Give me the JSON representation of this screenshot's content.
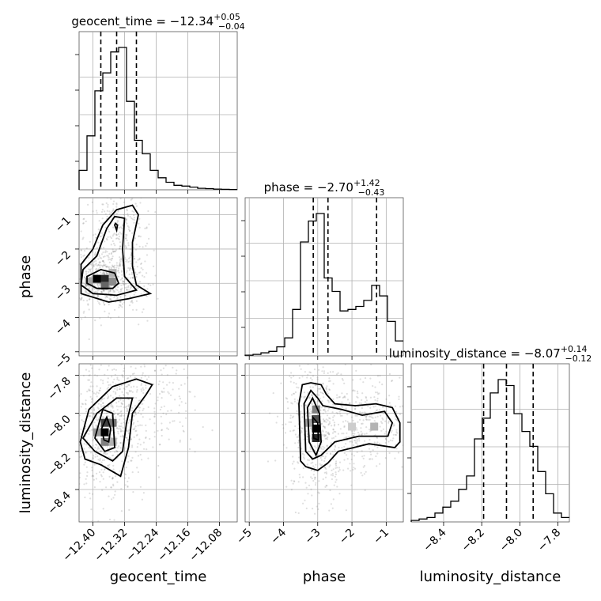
{
  "chart_data": {
    "type": "corner",
    "parameters": [
      "geocent_time",
      "phase",
      "luminosity_distance"
    ],
    "titles": [
      {
        "param": "geocent_time",
        "prefix": "geocent_time = ",
        "median": "−12.34",
        "plus": "+0.05",
        "minus": "−0.04"
      },
      {
        "param": "phase",
        "prefix": "phase = ",
        "median": "−2.70",
        "plus": "+1.42",
        "minus": "−0.43"
      },
      {
        "param": "luminosity_distance",
        "prefix": "luminosity_distance = ",
        "median": "−8.07",
        "plus": "+0.14",
        "minus": "−0.12"
      }
    ],
    "ranges": {
      "geocent_time": [
        -12.435,
        -12.035
      ],
      "phase": [
        -5.12,
        -0.5
      ],
      "luminosity_distance": [
        -8.57,
        -7.74
      ]
    },
    "ticks": {
      "geocent_time": {
        "values": [
          -12.4,
          -12.32,
          -12.24,
          -12.16,
          -12.08
        ],
        "labels": [
          "−12.40",
          "−12.32",
          "−12.24",
          "−12.16",
          "−12.08"
        ]
      },
      "phase": {
        "values": [
          -5,
          -4,
          -3,
          -2,
          -1
        ],
        "labels": [
          "−5",
          "−4",
          "−3",
          "−2",
          "−1"
        ]
      },
      "luminosity_distance": {
        "values": [
          -8.4,
          -8.2,
          -8.0,
          -7.8
        ],
        "labels": [
          "−8.4",
          "−8.2",
          "−8.0",
          "−7.8"
        ]
      }
    },
    "quantiles": {
      "geocent_time": [
        -12.38,
        -12.34,
        -12.29
      ],
      "phase": [
        -3.13,
        -2.7,
        -1.28
      ],
      "luminosity_distance": [
        -8.19,
        -8.07,
        -7.93
      ]
    },
    "histograms": {
      "geocent_time": {
        "edges": [
          -12.435,
          -12.415,
          -12.395,
          -12.375,
          -12.355,
          -12.335,
          -12.315,
          -12.295,
          -12.275,
          -12.255,
          -12.235,
          -12.215,
          -12.195,
          -12.175,
          -12.155,
          -12.135,
          -12.115,
          -12.095,
          -12.075,
          -12.055,
          -12.035
        ],
        "counts": [
          0.13,
          0.36,
          0.66,
          0.78,
          0.92,
          0.95,
          0.59,
          0.33,
          0.24,
          0.13,
          0.08,
          0.05,
          0.03,
          0.025,
          0.018,
          0.01,
          0.008,
          0.005,
          0.003,
          0.002
        ]
      },
      "phase": {
        "edges": [
          -5.12,
          -4.889,
          -4.658,
          -4.427,
          -4.196,
          -3.965,
          -3.734,
          -3.503,
          -3.272,
          -3.041,
          -2.81,
          -2.579,
          -2.348,
          -2.117,
          -1.886,
          -1.655,
          -1.424,
          -1.193,
          -0.962,
          -0.731,
          -0.5
        ],
        "counts": [
          0.005,
          0.01,
          0.02,
          0.03,
          0.06,
          0.12,
          0.31,
          0.76,
          0.9,
          0.95,
          0.52,
          0.43,
          0.3,
          0.31,
          0.33,
          0.37,
          0.47,
          0.4,
          0.23,
          0.1
        ]
      },
      "luminosity_distance": {
        "edges": [
          -8.57,
          -8.5285,
          -8.487,
          -8.4455,
          -8.404,
          -8.3625,
          -8.321,
          -8.2795,
          -8.238,
          -8.1965,
          -8.155,
          -8.1135,
          -8.072,
          -8.0305,
          -7.989,
          -7.9475,
          -7.906,
          -7.8645,
          -7.823,
          -7.7815,
          -7.74
        ],
        "counts": [
          0.01,
          0.02,
          0.03,
          0.06,
          0.1,
          0.14,
          0.22,
          0.31,
          0.56,
          0.7,
          0.87,
          0.96,
          0.92,
          0.73,
          0.61,
          0.51,
          0.34,
          0.19,
          0.06,
          0.03
        ]
      }
    },
    "pairs": [
      {
        "x": "geocent_time",
        "y": "phase",
        "blobs": [
          {
            "cx": -12.37,
            "cy": -2.95,
            "sx": 0.03,
            "sy": 0.28,
            "w": 0.62
          },
          {
            "cx": -12.34,
            "cy": -1.6,
            "sx": 0.025,
            "sy": 0.55,
            "w": 0.38
          }
        ],
        "contour_levels": [
          [
            [
              -12.43,
              -2.45
            ],
            [
              -12.4,
              -2.0
            ],
            [
              -12.375,
              -1.3
            ],
            [
              -12.34,
              -0.85
            ],
            [
              -12.3,
              -0.72
            ],
            [
              -12.285,
              -1.0
            ],
            [
              -12.3,
              -1.8
            ],
            [
              -12.3,
              -2.5
            ],
            [
              -12.29,
              -3.05
            ],
            [
              -12.255,
              -3.3
            ],
            [
              -12.31,
              -3.45
            ],
            [
              -12.36,
              -3.55
            ],
            [
              -12.43,
              -3.3
            ]
          ],
          [
            [
              -12.425,
              -2.6
            ],
            [
              -12.39,
              -2.2
            ],
            [
              -12.365,
              -1.4
            ],
            [
              -12.345,
              -1.05
            ],
            [
              -12.32,
              -1.1
            ],
            [
              -12.325,
              -2.0
            ],
            [
              -12.32,
              -2.8
            ],
            [
              -12.29,
              -3.2
            ],
            [
              -12.34,
              -3.35
            ],
            [
              -12.4,
              -3.3
            ],
            [
              -12.43,
              -3.05
            ]
          ],
          [
            [
              -12.415,
              -2.8
            ],
            [
              -12.38,
              -2.6
            ],
            [
              -12.345,
              -2.7
            ],
            [
              -12.335,
              -3.0
            ],
            [
              -12.35,
              -3.15
            ],
            [
              -12.39,
              -3.15
            ],
            [
              -12.415,
              -3.0
            ]
          ],
          [
            [
              -12.343,
              -1.25
            ],
            [
              -12.338,
              -1.3
            ],
            [
              -12.34,
              -1.45
            ],
            [
              -12.345,
              -1.3
            ]
          ]
        ],
        "density_cells": [
          {
            "x": -12.39,
            "y": -2.87,
            "v": 1.0
          },
          {
            "x": -12.37,
            "y": -2.87,
            "v": 0.85
          },
          {
            "x": -12.37,
            "y": -3.07,
            "v": 0.6
          },
          {
            "x": -12.35,
            "y": -2.95,
            "v": 0.45
          },
          {
            "x": -12.41,
            "y": -2.95,
            "v": 0.35
          },
          {
            "x": -12.35,
            "y": -2.7,
            "v": 0.3
          }
        ]
      },
      {
        "x": "geocent_time",
        "y": "luminosity_distance",
        "blobs": [
          {
            "cx": -12.365,
            "cy": -8.1,
            "sx": 0.03,
            "sy": 0.11,
            "w": 0.7
          },
          {
            "cx": -12.29,
            "cy": -7.92,
            "sx": 0.05,
            "sy": 0.08,
            "w": 0.3
          }
        ],
        "contour_levels": [
          [
            [
              -12.432,
              -8.15
            ],
            [
              -12.41,
              -7.98
            ],
            [
              -12.35,
              -7.86
            ],
            [
              -12.29,
              -7.82
            ],
            [
              -12.25,
              -7.85
            ],
            [
              -12.265,
              -7.9
            ],
            [
              -12.3,
              -8.0
            ],
            [
              -12.31,
              -8.18
            ],
            [
              -12.33,
              -8.33
            ],
            [
              -12.38,
              -8.27
            ],
            [
              -12.42,
              -8.24
            ]
          ],
          [
            [
              -12.425,
              -8.13
            ],
            [
              -12.39,
              -8.0
            ],
            [
              -12.34,
              -7.92
            ],
            [
              -12.3,
              -7.92
            ],
            [
              -12.315,
              -8.05
            ],
            [
              -12.325,
              -8.2
            ],
            [
              -12.35,
              -8.25
            ],
            [
              -12.395,
              -8.2
            ]
          ],
          [
            [
              -12.395,
              -8.13
            ],
            [
              -12.375,
              -7.98
            ],
            [
              -12.35,
              -8.0
            ],
            [
              -12.345,
              -8.18
            ],
            [
              -12.37,
              -8.2
            ]
          ],
          [
            [
              -12.378,
              -8.08
            ],
            [
              -12.365,
              -8.02
            ],
            [
              -12.355,
              -8.08
            ],
            [
              -12.36,
              -8.15
            ],
            [
              -12.372,
              -8.14
            ]
          ]
        ],
        "density_cells": [
          {
            "x": -12.37,
            "y": -8.1,
            "v": 1.0
          },
          {
            "x": -12.37,
            "y": -8.05,
            "v": 0.75
          },
          {
            "x": -12.35,
            "y": -8.05,
            "v": 0.55
          },
          {
            "x": -12.37,
            "y": -8.15,
            "v": 0.5
          },
          {
            "x": -12.39,
            "y": -8.1,
            "v": 0.4
          },
          {
            "x": -12.35,
            "y": -8.15,
            "v": 0.3
          }
        ]
      },
      {
        "x": "phase",
        "y": "luminosity_distance",
        "blobs": [
          {
            "cx": -3.05,
            "cy": -8.07,
            "sx": 0.28,
            "sy": 0.12,
            "w": 0.6
          },
          {
            "cx": -1.5,
            "cy": -8.05,
            "sx": 0.45,
            "sy": 0.08,
            "w": 0.4
          }
        ],
        "contour_levels": [
          [
            [
              -3.5,
              -8.25
            ],
            [
              -3.55,
              -7.95
            ],
            [
              -3.45,
              -7.85
            ],
            [
              -3.2,
              -7.84
            ],
            [
              -2.9,
              -7.85
            ],
            [
              -2.75,
              -7.9
            ],
            [
              -2.5,
              -7.95
            ],
            [
              -1.9,
              -7.96
            ],
            [
              -1.3,
              -7.95
            ],
            [
              -0.82,
              -7.97
            ],
            [
              -0.6,
              -8.05
            ],
            [
              -0.6,
              -8.15
            ],
            [
              -0.75,
              -8.18
            ],
            [
              -1.5,
              -8.16
            ],
            [
              -2.4,
              -8.2
            ],
            [
              -2.7,
              -8.26
            ],
            [
              -3.0,
              -8.3
            ],
            [
              -3.35,
              -8.28
            ]
          ],
          [
            [
              -3.35,
              -8.2
            ],
            [
              -3.4,
              -7.95
            ],
            [
              -3.2,
              -7.88
            ],
            [
              -3.0,
              -7.92
            ],
            [
              -2.85,
              -7.96
            ],
            [
              -2.3,
              -7.98
            ],
            [
              -1.7,
              -8.01
            ],
            [
              -1.05,
              -7.99
            ],
            [
              -0.82,
              -8.05
            ],
            [
              -0.95,
              -8.12
            ],
            [
              -1.8,
              -8.12
            ],
            [
              -2.5,
              -8.15
            ],
            [
              -2.9,
              -8.22
            ],
            [
              -3.15,
              -8.24
            ]
          ],
          [
            [
              -3.25,
              -8.15
            ],
            [
              -3.3,
              -7.97
            ],
            [
              -3.15,
              -7.92
            ],
            [
              -2.95,
              -8.0
            ],
            [
              -2.9,
              -8.15
            ],
            [
              -3.05,
              -8.22
            ]
          ],
          [
            [
              -3.12,
              -8.13
            ],
            [
              -3.15,
              -8.02
            ],
            [
              -3.0,
              -8.05
            ],
            [
              -2.98,
              -8.14
            ]
          ]
        ],
        "density_cells": [
          {
            "x": -3.05,
            "y": -8.08,
            "v": 1.0
          },
          {
            "x": -3.05,
            "y": -8.13,
            "v": 0.85
          },
          {
            "x": -3.05,
            "y": -8.03,
            "v": 0.7
          },
          {
            "x": -3.05,
            "y": -7.98,
            "v": 0.5
          },
          {
            "x": -3.28,
            "y": -8.05,
            "v": 0.35
          },
          {
            "x": -1.35,
            "y": -8.07,
            "v": 0.3
          },
          {
            "x": -2.0,
            "y": -8.07,
            "v": 0.2
          }
        ]
      }
    ]
  }
}
